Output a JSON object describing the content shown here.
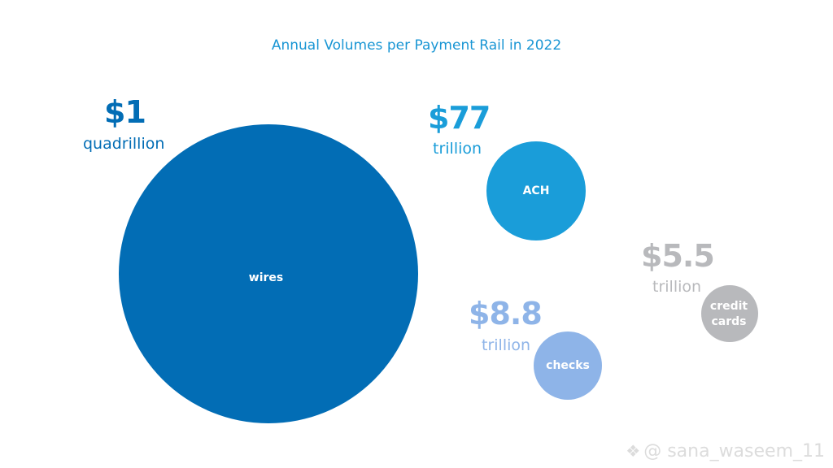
{
  "chart_data": {
    "type": "bubble",
    "title": "Annual Volumes per Payment Rail in 2022",
    "series": [
      {
        "name": "wires",
        "value_display": "$1",
        "unit": "quadrillion",
        "value_trillion": 1000,
        "color": "#026db5"
      },
      {
        "name": "ACH",
        "value_display": "$77",
        "unit": "trillion",
        "value_trillion": 77,
        "color": "#1a9dd9"
      },
      {
        "name": "checks",
        "value_display": "$8.8",
        "unit": "trillion",
        "value_trillion": 8.8,
        "color": "#8eb4e8"
      },
      {
        "name": "credit\ncards",
        "value_display": "$5.5",
        "unit": "trillion",
        "value_trillion": 5.5,
        "color": "#b8b9bc"
      }
    ]
  },
  "label_colors": {
    "wires": "#026db5",
    "ACH": "#1a9dd9",
    "checks": "#8eb4e8",
    "credit_cards": "#b8b9bc"
  },
  "watermark": {
    "text": "@ sana_waseem_11"
  }
}
